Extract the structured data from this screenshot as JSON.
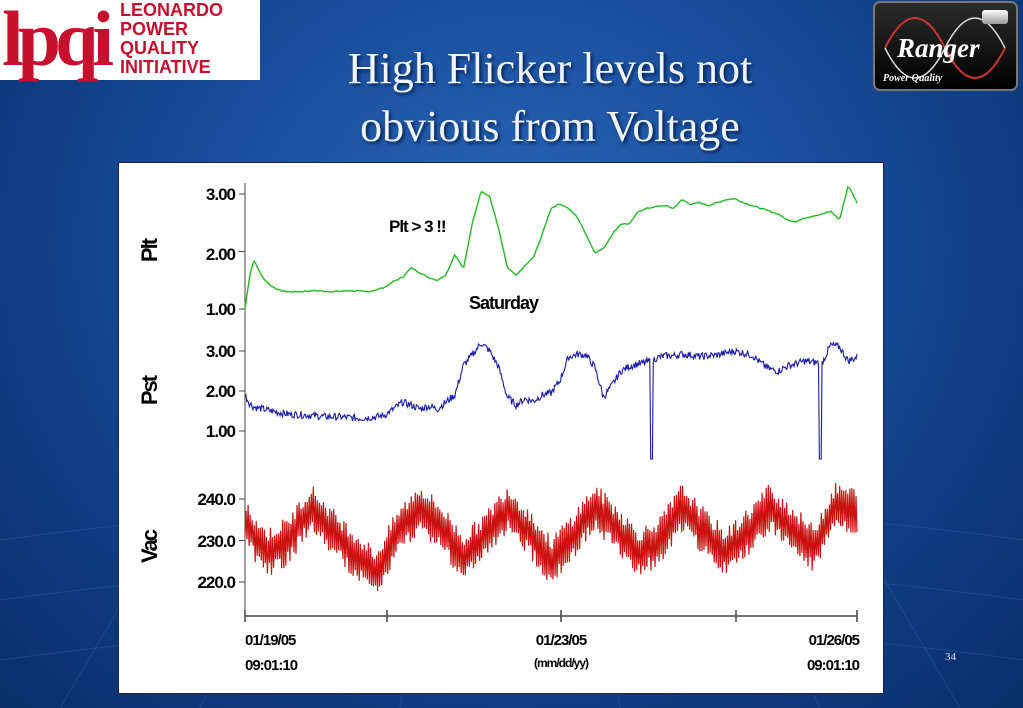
{
  "slide": {
    "title_line1": "High Flicker levels not",
    "title_line2": "obvious from Voltage",
    "page_number": "34"
  },
  "logos": {
    "lpqi_mark": "lpqi",
    "lpqi_words": [
      "LEONARDO",
      "POWER",
      "QUALITY",
      "INITIATIVE"
    ],
    "ranger_name": "Ranger",
    "ranger_sub": "Power Quality"
  },
  "colors": {
    "plt": "#22bb22",
    "pst": "#1a1aaa",
    "vac": "#cc1111"
  },
  "chart_data": {
    "type": "line",
    "x_start": "01/19/05 09:01:10",
    "x_end": "01/26/05 09:01:10",
    "x_ticks": [
      {
        "date": "01/19/05",
        "time": "09:01:10"
      },
      {
        "date": "01/23/05",
        "time": ""
      },
      {
        "date": "01/26/05",
        "time": "09:01:10"
      }
    ],
    "x_format_label": "(mm/dd/yy)",
    "panels": [
      {
        "ylabel": "Plt",
        "yticks": [
          "1.00",
          "2.00",
          "3.00"
        ],
        "ylim": [
          1.0,
          3.0
        ],
        "annotations": [
          "Plt > 3 !!",
          "Saturday"
        ],
        "series": [
          {
            "x_days": [
              0,
              0.05,
              0.1,
              0.2,
              0.3,
              0.4,
              0.5,
              0.6,
              0.8,
              1.0,
              1.2,
              1.4,
              1.5,
              1.6,
              1.7,
              1.8,
              1.9,
              2.0,
              2.1,
              2.2,
              2.3,
              2.4,
              2.5,
              2.6,
              2.7,
              2.8,
              2.9,
              3.0,
              3.1,
              3.2,
              3.3,
              3.4,
              3.5,
              3.6,
              3.7,
              3.8,
              3.9,
              4.0,
              4.1,
              4.2,
              4.3,
              4.4,
              4.5,
              4.6,
              4.7,
              4.8,
              4.9,
              5.0,
              5.1,
              5.2,
              5.3,
              5.4,
              5.5,
              5.6,
              5.7,
              5.8,
              5.9,
              6.0,
              6.1,
              6.2,
              6.3,
              6.4,
              6.5,
              6.6,
              6.7,
              6.8,
              6.9,
              7.0
            ],
            "values": [
              1.0,
              1.55,
              1.85,
              1.55,
              1.4,
              1.32,
              1.3,
              1.3,
              1.32,
              1.3,
              1.32,
              1.3,
              1.33,
              1.38,
              1.48,
              1.55,
              1.72,
              1.63,
              1.55,
              1.5,
              1.6,
              1.95,
              1.7,
              2.5,
              3.05,
              2.95,
              2.4,
              1.72,
              1.58,
              1.75,
              1.9,
              2.3,
              2.75,
              2.83,
              2.75,
              2.6,
              2.3,
              1.98,
              2.05,
              2.3,
              2.48,
              2.48,
              2.7,
              2.75,
              2.78,
              2.8,
              2.75,
              2.9,
              2.82,
              2.85,
              2.8,
              2.85,
              2.9,
              2.92,
              2.85,
              2.8,
              2.75,
              2.7,
              2.65,
              2.55,
              2.52,
              2.58,
              2.62,
              2.65,
              2.7,
              2.55,
              3.15,
              2.85
            ]
          }
        ]
      },
      {
        "ylabel": "Pst",
        "yticks": [
          "1.00",
          "2.00",
          "3.00"
        ],
        "ylim": [
          1.0,
          3.0
        ],
        "series": [
          {
            "x_days": [
              0,
              0.05,
              0.1,
              0.3,
              0.5,
              0.7,
              0.9,
              1.1,
              1.3,
              1.5,
              1.6,
              1.7,
              1.8,
              1.9,
              2.0,
              2.1,
              2.2,
              2.4,
              2.5,
              2.6,
              2.7,
              2.8,
              2.9,
              3.0,
              3.1,
              3.2,
              3.3,
              3.4,
              3.5,
              3.6,
              3.7,
              3.8,
              3.9,
              4.0,
              4.1,
              4.2,
              4.3,
              4.4,
              4.5,
              4.6,
              4.7,
              4.8,
              4.9,
              5.0,
              5.1,
              5.2,
              5.3,
              5.4,
              5.5,
              5.6,
              5.7,
              5.8,
              5.9,
              6.0,
              6.1,
              6.2,
              6.3,
              6.4,
              6.5,
              6.6,
              6.7,
              6.8,
              6.9,
              7.0
            ],
            "values": [
              1.9,
              1.7,
              1.6,
              1.5,
              1.42,
              1.4,
              1.36,
              1.35,
              1.32,
              1.35,
              1.4,
              1.55,
              1.72,
              1.65,
              1.55,
              1.62,
              1.55,
              1.9,
              2.65,
              2.9,
              3.2,
              3.0,
              2.6,
              1.85,
              1.65,
              1.8,
              1.75,
              1.9,
              1.95,
              2.25,
              2.85,
              2.92,
              2.9,
              2.6,
              1.85,
              2.15,
              2.5,
              2.62,
              2.68,
              2.72,
              2.82,
              2.88,
              2.88,
              2.92,
              2.9,
              2.86,
              2.88,
              2.9,
              2.95,
              3.0,
              2.95,
              2.9,
              2.7,
              2.55,
              2.5,
              2.62,
              2.68,
              2.75,
              2.72,
              2.7,
              3.15,
              3.1,
              2.75,
              2.85
            ]
          }
        ]
      },
      {
        "ylabel": "Vac",
        "yticks": [
          "220.0",
          "230.0",
          "240.0"
        ],
        "ylim": [
          220.0,
          240.0
        ],
        "series": [
          {
            "x_days": [
              0,
              0.25,
              0.5,
              0.75,
              1.0,
              1.25,
              1.5,
              1.75,
              2.0,
              2.25,
              2.5,
              2.75,
              3.0,
              3.25,
              3.5,
              3.75,
              4.0,
              4.25,
              4.5,
              4.75,
              5.0,
              5.25,
              5.5,
              5.75,
              6.0,
              6.25,
              6.5,
              6.75,
              7.0
            ],
            "values": [
              234,
              227,
              230,
              238,
              232,
              227,
              222,
              232,
              238,
              233,
              226,
              231,
              238,
              232,
              225,
              231,
              238,
              233,
              227,
              230,
              238,
              232,
              227,
              232,
              238,
              233,
              228,
              238,
              237
            ],
            "swing": 5
          }
        ]
      }
    ]
  }
}
